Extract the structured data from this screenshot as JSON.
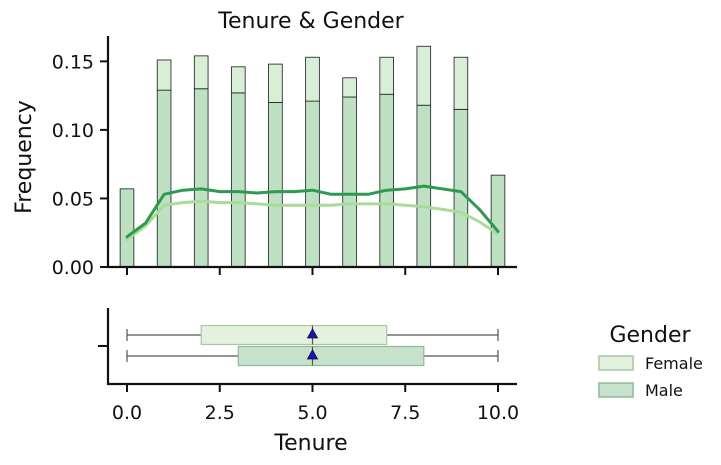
{
  "chart_data": {
    "type": "histogram",
    "title": "Tenure & Gender",
    "xlabel": "Tenure",
    "ylabel": "Frequency",
    "xlim": [
      -0.5,
      10.5
    ],
    "ylim": [
      0,
      0.17
    ],
    "x_ticks": [
      "0.0",
      "2.5",
      "5.0",
      "7.5",
      "10.0"
    ],
    "x_tick_values": [
      0,
      2.5,
      5,
      7.5,
      10
    ],
    "y_ticks": [
      "0.00",
      "0.05",
      "0.10",
      "0.15"
    ],
    "y_tick_values": [
      0,
      0.05,
      0.1,
      0.15
    ],
    "grid": false,
    "legend_position": "right",
    "bin_width": 0.37,
    "bins_x": [
      0,
      1,
      2,
      3,
      4,
      5,
      6,
      7,
      8,
      9,
      10
    ],
    "series": [
      {
        "name": "Male",
        "color": "#2e9a4f",
        "fill": "#bfe1c3",
        "values": [
          0.057,
          0.129,
          0.13,
          0.127,
          0.12,
          0.121,
          0.124,
          0.126,
          0.118,
          0.115,
          0.067
        ],
        "kde": [
          0.022,
          0.032,
          0.053,
          0.056,
          0.057,
          0.055,
          0.055,
          0.054,
          0.055,
          0.055,
          0.056,
          0.053,
          0.053,
          0.053,
          0.056,
          0.057,
          0.059,
          0.057,
          0.055,
          0.042,
          0.026
        ]
      },
      {
        "name": "Female",
        "color": "#a8dc98",
        "fill": "#d9eed7",
        "values": [
          0.0,
          0.022,
          0.024,
          0.019,
          0.028,
          0.032,
          0.014,
          0.027,
          0.043,
          0.038,
          0.0
        ],
        "kde": [
          0.02,
          0.03,
          0.045,
          0.047,
          0.048,
          0.047,
          0.047,
          0.046,
          0.045,
          0.045,
          0.045,
          0.045,
          0.046,
          0.046,
          0.046,
          0.045,
          0.044,
          0.042,
          0.04,
          0.033,
          0.024
        ]
      }
    ],
    "kde_x": [
      0,
      0.5,
      1,
      1.5,
      2,
      2.5,
      3,
      3.5,
      4,
      4.5,
      5,
      5.5,
      6,
      6.5,
      7,
      7.5,
      8,
      8.5,
      9,
      9.5,
      10
    ],
    "boxplot": [
      {
        "name": "Female",
        "min": 0,
        "q1": 2,
        "median": 5,
        "q3": 7,
        "max": 10,
        "mean": 5.0,
        "fill": "#e3f1df",
        "edge": "#a9c5a4"
      },
      {
        "name": "Male",
        "min": 0,
        "q1": 3,
        "median": 5,
        "q3": 8,
        "max": 10,
        "mean": 5.0,
        "fill": "#c6e2cb",
        "edge": "#93b79b"
      }
    ],
    "legend": {
      "title": "Gender",
      "items": [
        {
          "label": "Female",
          "fill": "#e3f1df",
          "edge": "#a9c5a4"
        },
        {
          "label": "Male",
          "fill": "#c6e2cb",
          "edge": "#93b79b"
        }
      ]
    }
  }
}
